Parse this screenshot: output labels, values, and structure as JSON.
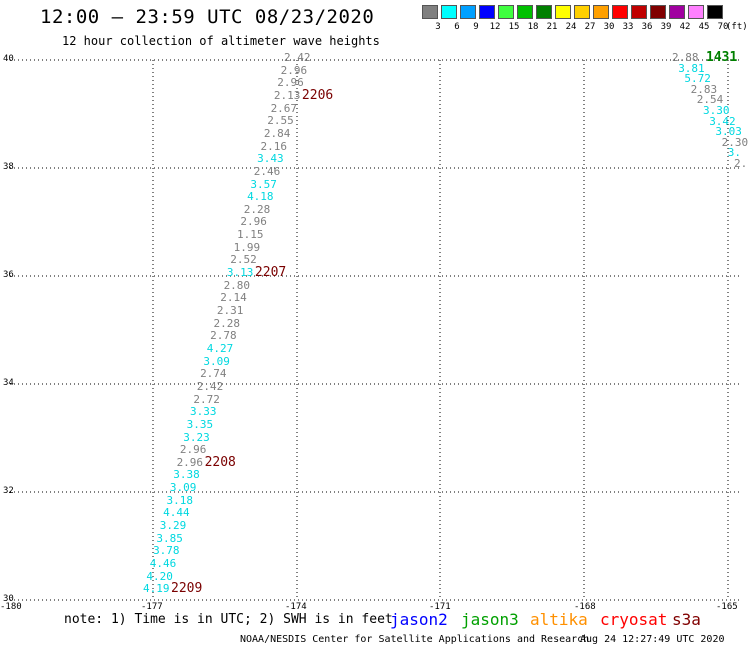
{
  "header": {
    "title": "12:00 – 23:59 UTC 08/23/2020",
    "subtitle": "12 hour collection of altimeter wave heights"
  },
  "color_scale": {
    "unit_label": "(ft)",
    "bins": [
      {
        "label": "3",
        "color": "#808080"
      },
      {
        "label": "6",
        "color": "#00ffff"
      },
      {
        "label": "9",
        "color": "#00a0ff"
      },
      {
        "label": "12",
        "color": "#0000ff"
      },
      {
        "label": "15",
        "color": "#40ff40"
      },
      {
        "label": "18",
        "color": "#00c000"
      },
      {
        "label": "21",
        "color": "#008000"
      },
      {
        "label": "24",
        "color": "#ffff00"
      },
      {
        "label": "27",
        "color": "#ffd000"
      },
      {
        "label": "30",
        "color": "#ffa000"
      },
      {
        "label": "33",
        "color": "#ff0000"
      },
      {
        "label": "36",
        "color": "#c00000"
      },
      {
        "label": "39",
        "color": "#800000"
      },
      {
        "label": "42",
        "color": "#a000a0"
      },
      {
        "label": "45",
        "color": "#ff80ff"
      },
      {
        "label": "70",
        "color": "#000000"
      }
    ]
  },
  "axes": {
    "lat_ticks": [
      "40",
      "38",
      "36",
      "34",
      "32",
      "30"
    ],
    "lon_ticks": [
      "-180",
      "-177",
      "-174",
      "-171",
      "-168",
      "-165"
    ]
  },
  "track_left": {
    "wave_heights": [
      {
        "v": "2.42",
        "c": "#808080"
      },
      {
        "v": "2.96",
        "c": "#808080"
      },
      {
        "v": "2.96",
        "c": "#808080"
      },
      {
        "v": "2.13",
        "c": "#808080"
      },
      {
        "v": "2.67",
        "c": "#808080"
      },
      {
        "v": "2.55",
        "c": "#808080"
      },
      {
        "v": "2.84",
        "c": "#808080"
      },
      {
        "v": "2.16",
        "c": "#808080"
      },
      {
        "v": "3.43",
        "c": "#00d8e0"
      },
      {
        "v": "2.46",
        "c": "#808080"
      },
      {
        "v": "3.57",
        "c": "#00d8e0"
      },
      {
        "v": "4.18",
        "c": "#00d8e0"
      },
      {
        "v": "2.28",
        "c": "#808080"
      },
      {
        "v": "2.96",
        "c": "#808080"
      },
      {
        "v": "1.15",
        "c": "#808080"
      },
      {
        "v": "1.99",
        "c": "#808080"
      },
      {
        "v": "2.52",
        "c": "#808080"
      },
      {
        "v": "3.13",
        "c": "#00d8e0"
      },
      {
        "v": "2.80",
        "c": "#808080"
      },
      {
        "v": "2.14",
        "c": "#808080"
      },
      {
        "v": "2.31",
        "c": "#808080"
      },
      {
        "v": "2.28",
        "c": "#808080"
      },
      {
        "v": "2.78",
        "c": "#808080"
      },
      {
        "v": "4.27",
        "c": "#00d8e0"
      },
      {
        "v": "3.09",
        "c": "#00d8e0"
      },
      {
        "v": "2.74",
        "c": "#808080"
      },
      {
        "v": "2.42",
        "c": "#808080"
      },
      {
        "v": "2.72",
        "c": "#808080"
      },
      {
        "v": "3.33",
        "c": "#00d8e0"
      },
      {
        "v": "3.35",
        "c": "#00d8e0"
      },
      {
        "v": "3.23",
        "c": "#00d8e0"
      },
      {
        "v": "2.96",
        "c": "#808080"
      },
      {
        "v": "2.96",
        "c": "#808080"
      },
      {
        "v": "3.38",
        "c": "#00d8e0"
      },
      {
        "v": "3.09",
        "c": "#00d8e0"
      },
      {
        "v": "3.18",
        "c": "#00d8e0"
      },
      {
        "v": "4.44",
        "c": "#00d8e0"
      },
      {
        "v": "3.29",
        "c": "#00d8e0"
      },
      {
        "v": "3.85",
        "c": "#00d8e0"
      },
      {
        "v": "3.78",
        "c": "#00d8e0"
      },
      {
        "v": "4.46",
        "c": "#00d8e0"
      },
      {
        "v": "4.20",
        "c": "#00d8e0"
      },
      {
        "v": "4.19",
        "c": "#00d8e0"
      }
    ],
    "time_labels": [
      {
        "label": "2206",
        "row": 3
      },
      {
        "label": "2207",
        "row": 17
      },
      {
        "label": "2208",
        "row": 32
      },
      {
        "label": "2209",
        "row": 42
      }
    ]
  },
  "track_right": {
    "wave_heights": [
      {
        "v": "2.88",
        "c": "#808080"
      },
      {
        "v": "3.81",
        "c": "#00d8e0"
      },
      {
        "v": "5.72",
        "c": "#00d8e0"
      },
      {
        "v": "2.83",
        "c": "#808080"
      },
      {
        "v": "2.54",
        "c": "#808080"
      },
      {
        "v": "3.30",
        "c": "#00d8e0"
      },
      {
        "v": "3.42",
        "c": "#00d8e0"
      },
      {
        "v": "3.03",
        "c": "#00d8e0"
      },
      {
        "v": "2.30",
        "c": "#808080"
      },
      {
        "v": "3.",
        "c": "#00d8e0"
      },
      {
        "v": "2.",
        "c": "#808080"
      }
    ],
    "time_label": "1431"
  },
  "footer": {
    "note": "note: 1) Time is in UTC; 2) SWH is in feet",
    "satellites": [
      {
        "name": "jason2",
        "color": "#0000ff"
      },
      {
        "name": "jason3",
        "color": "#00a000"
      },
      {
        "name": "altika",
        "color": "#ff9000"
      },
      {
        "name": "cryosat",
        "color": "#ff0000"
      },
      {
        "name": "s3a",
        "color": "#800000"
      }
    ],
    "credit": "NOAA/NESDIS Center for Satellite Applications and Research",
    "timestamp": "Aug 24 12:27:49 UTC 2020"
  }
}
